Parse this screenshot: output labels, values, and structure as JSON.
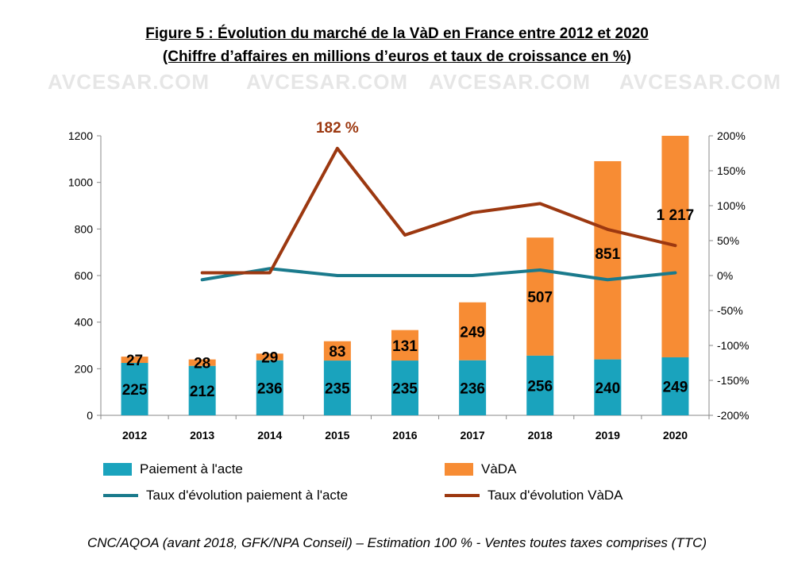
{
  "title": "Figure 5 : Évolution du marché de la VàD en France entre 2012 et 2020",
  "subtitle": "(Chiffre d’affaires en millions d’euros et taux de croissance en %)",
  "source": "CNC/AQOA (avant 2018, GFK/NPA Conseil) – Estimation 100 % - Ventes toutes taxes comprises (TTC)",
  "watermark": "AVCESAR.COM",
  "colors": {
    "paiement": "#1aa3bd",
    "vada": "#f78c34",
    "taux_paiement": "#1a7a8c",
    "taux_vada": "#9c3810"
  },
  "chart_data": {
    "type": "bar",
    "stacked": true,
    "categories": [
      "2012",
      "2013",
      "2014",
      "2015",
      "2016",
      "2017",
      "2018",
      "2019",
      "2020"
    ],
    "series": [
      {
        "name": "Paiement à l'acte",
        "values": [
          225,
          212,
          236,
          235,
          235,
          236,
          256,
          240,
          249
        ],
        "labels": [
          "225",
          "212",
          "236",
          "235",
          "235",
          "236",
          "256",
          "240",
          "249"
        ]
      },
      {
        "name": "VàDA",
        "values": [
          27,
          28,
          29,
          83,
          131,
          249,
          507,
          851,
          1217
        ],
        "labels": [
          "27",
          "28",
          "29",
          "83",
          "131",
          "249",
          "507",
          "851",
          "1 217"
        ]
      }
    ],
    "line_series": [
      {
        "name": "Taux d'évolution paiement à l'acte",
        "axis": "right",
        "values": [
          null,
          -6,
          10,
          0,
          0,
          0,
          8,
          -6,
          4
        ]
      },
      {
        "name": "Taux d'évolution VàDA",
        "axis": "right",
        "values": [
          null,
          4,
          4,
          182,
          58,
          90,
          103,
          66,
          43
        ]
      }
    ],
    "annotations": [
      {
        "text": "182 %",
        "series": "Taux d'évolution VàDA",
        "category": "2015"
      }
    ],
    "ylim": [
      0,
      1200
    ],
    "yticks": [
      "0",
      "200",
      "400",
      "600",
      "800",
      "1000",
      "1200"
    ],
    "y2lim": [
      -200,
      200
    ],
    "y2ticks": [
      "-200%",
      "-150%",
      "-100%",
      "-50%",
      "0%",
      "50%",
      "100%",
      "150%",
      "200%"
    ],
    "legend": "bottom",
    "grid": false
  }
}
